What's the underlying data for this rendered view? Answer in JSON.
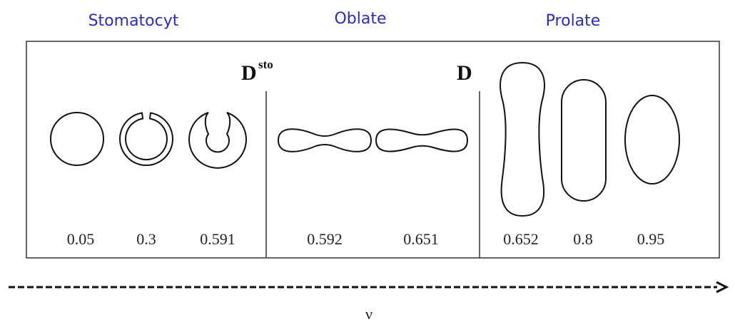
{
  "sections": [
    {
      "title": "Stomatocyt",
      "shapes": [
        "0.05",
        "0.3",
        "0.591"
      ]
    },
    {
      "title": "Oblate",
      "shapes": [
        "0.592",
        "0.651"
      ]
    },
    {
      "title": "Prolate",
      "shapes": [
        "0.652",
        "0.8",
        "0.95"
      ]
    }
  ],
  "boundaries": [
    {
      "main": "D",
      "sup": "sto"
    },
    {
      "main": "D"
    }
  ],
  "axis_label": "ν"
}
